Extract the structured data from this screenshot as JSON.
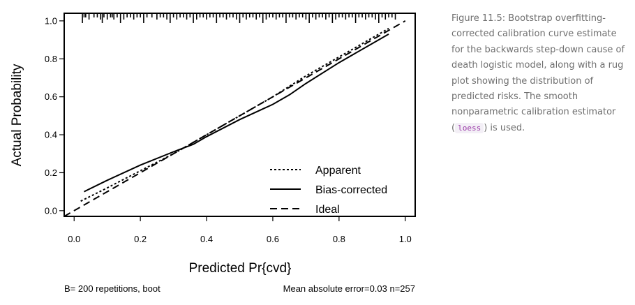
{
  "chart_data": {
    "type": "line",
    "xlabel": "Predicted Pr{cvd}",
    "ylabel": "Actual Probability",
    "xlim": [
      -0.03,
      1.03
    ],
    "ylim": [
      -0.03,
      1.04
    ],
    "x_ticks": [
      "0.0",
      "0.2",
      "0.4",
      "0.6",
      "0.8",
      "1.0"
    ],
    "y_ticks": [
      "0.0",
      "0.2",
      "0.4",
      "0.6",
      "0.8",
      "1.0"
    ],
    "grid": false,
    "legend_position": "bottom-right",
    "series": [
      {
        "name": "Apparent",
        "dash": "dotted",
        "x": [
          0.02,
          0.1,
          0.2,
          0.3,
          0.4,
          0.5,
          0.6,
          0.7,
          0.8,
          0.9,
          0.95
        ],
        "y": [
          0.05,
          0.12,
          0.21,
          0.3,
          0.4,
          0.5,
          0.6,
          0.71,
          0.81,
          0.91,
          0.96
        ]
      },
      {
        "name": "Bias-corrected",
        "dash": "solid",
        "x": [
          0.03,
          0.1,
          0.2,
          0.3,
          0.36,
          0.4,
          0.5,
          0.6,
          0.65,
          0.7,
          0.8,
          0.9,
          0.95
        ],
        "y": [
          0.1,
          0.16,
          0.24,
          0.31,
          0.35,
          0.39,
          0.48,
          0.56,
          0.61,
          0.67,
          0.78,
          0.88,
          0.93
        ]
      },
      {
        "name": "Ideal",
        "dash": "dashed",
        "x": [
          -0.03,
          1.0
        ],
        "y": [
          -0.03,
          1.0
        ]
      }
    ],
    "rug": [
      0.025,
      0.03,
      0.035,
      0.045,
      0.06,
      0.07,
      0.08,
      0.085,
      0.09,
      0.1,
      0.11,
      0.115,
      0.12,
      0.13,
      0.14,
      0.15,
      0.16,
      0.17,
      0.18,
      0.19,
      0.2,
      0.21,
      0.22,
      0.235,
      0.25,
      0.26,
      0.27,
      0.28,
      0.29,
      0.3,
      0.31,
      0.32,
      0.33,
      0.34,
      0.35,
      0.36,
      0.37,
      0.38,
      0.39,
      0.4,
      0.41,
      0.42,
      0.43,
      0.44,
      0.45,
      0.46,
      0.47,
      0.48,
      0.49,
      0.5,
      0.51,
      0.52,
      0.53,
      0.54,
      0.55,
      0.56,
      0.57,
      0.58,
      0.59,
      0.6,
      0.61,
      0.62,
      0.63,
      0.64,
      0.65,
      0.66,
      0.67,
      0.68,
      0.69,
      0.7,
      0.71,
      0.72,
      0.73,
      0.74,
      0.75,
      0.76,
      0.77,
      0.78,
      0.79,
      0.8,
      0.81,
      0.82,
      0.83,
      0.84,
      0.85,
      0.86,
      0.87,
      0.88,
      0.89,
      0.9,
      0.91,
      0.92,
      0.93,
      0.94,
      0.95,
      0.96,
      0.97
    ],
    "footer_left": "B= 200 repetitions, boot",
    "footer_right": "Mean absolute error=0.03 n=257"
  },
  "caption": {
    "text": "Figure 11.5: Bootstrap overfitting-corrected calibration curve estimate for the backwards step-down cause of death logistic model, along with a rug plot showing the distribution of predicted risks. The smooth nonparametric calibration estimator (",
    "code": "loess",
    "after": ") is used."
  }
}
